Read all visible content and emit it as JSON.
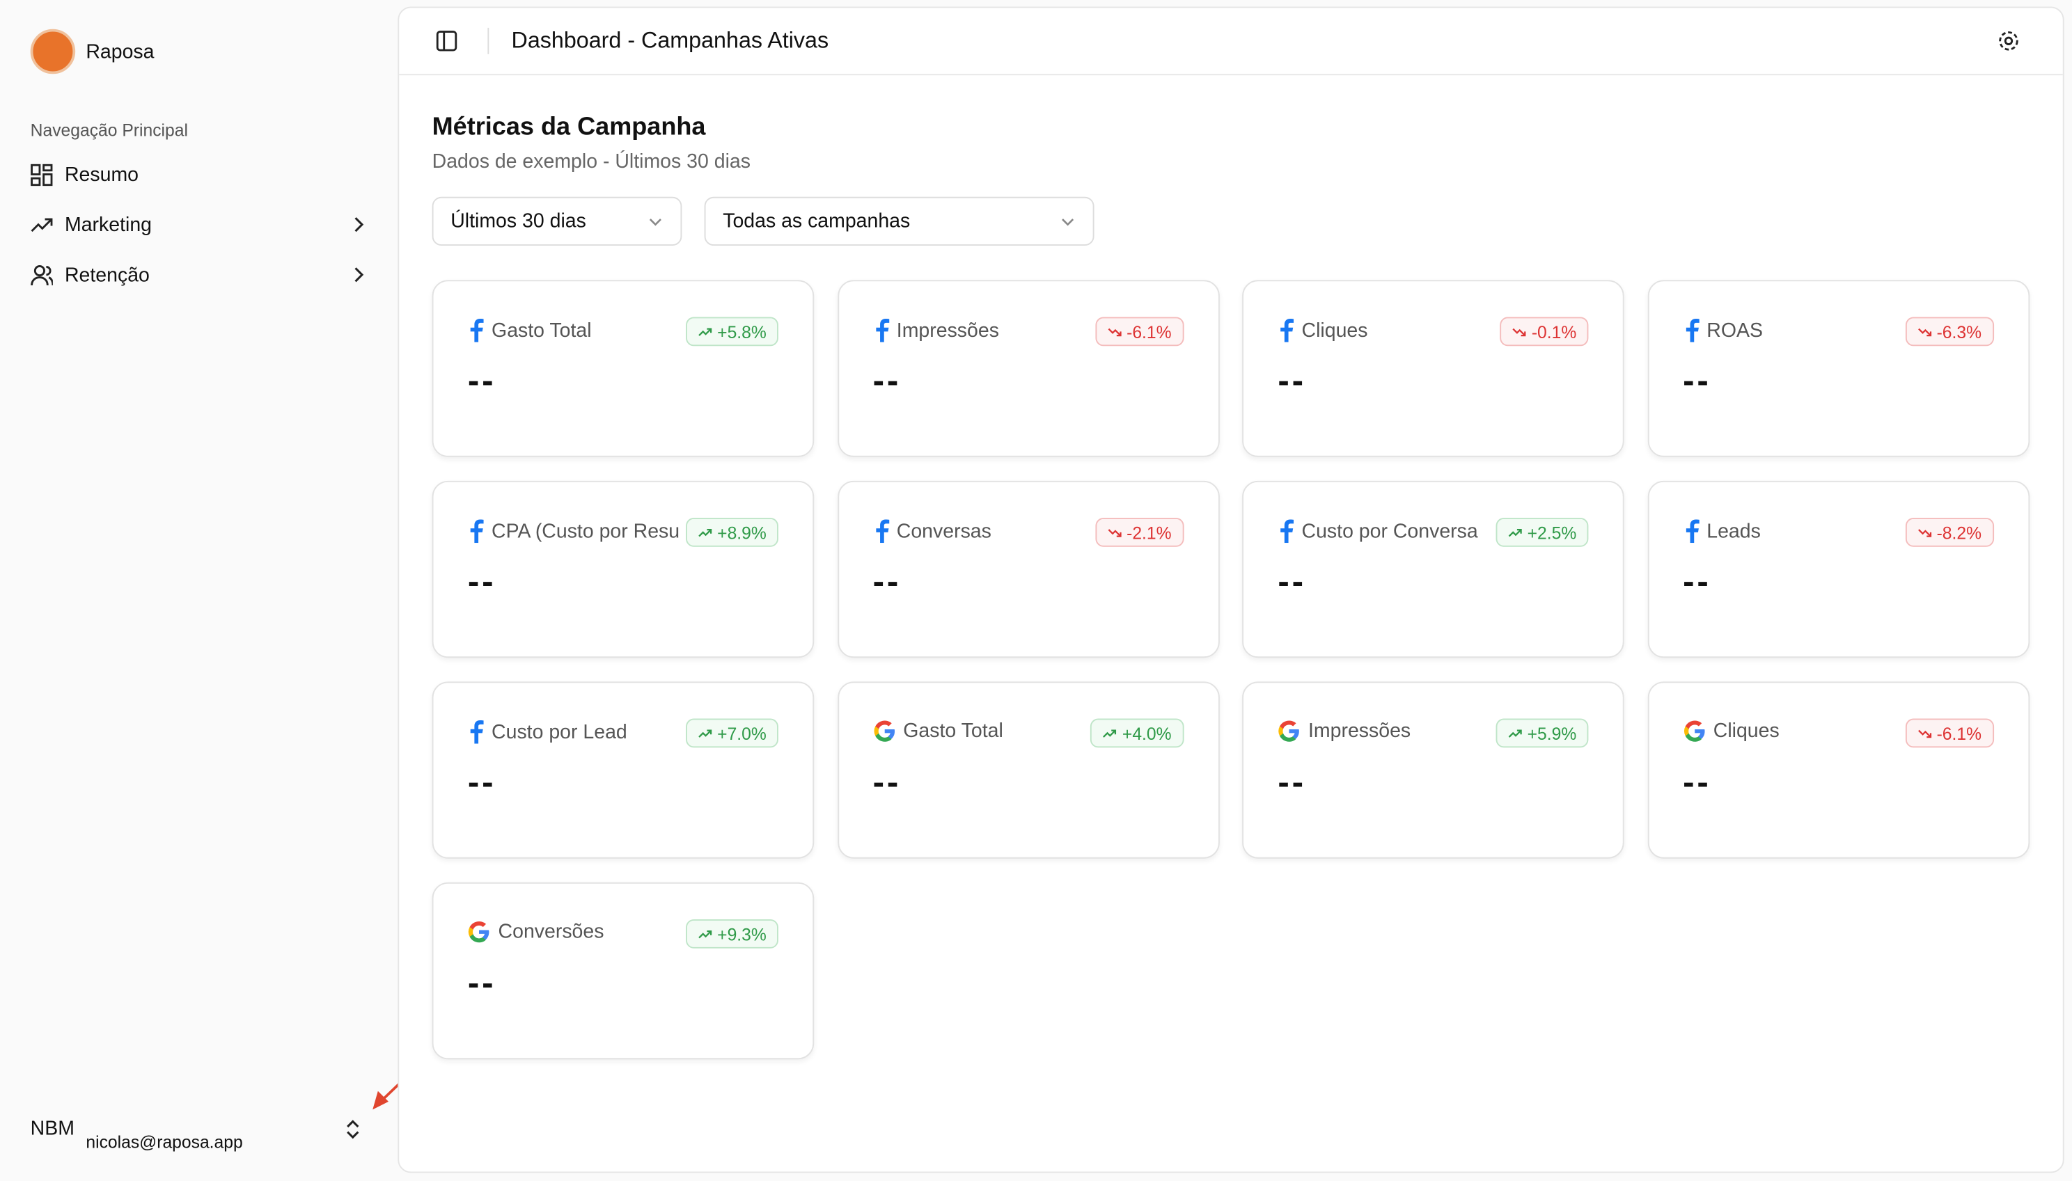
{
  "sidebar": {
    "brand": "Raposa",
    "section": "Navegação Principal",
    "nav": [
      {
        "label": "Resumo",
        "submenu": false
      },
      {
        "label": "Marketing",
        "submenu": true
      },
      {
        "label": "Retenção",
        "submenu": true
      }
    ],
    "user": {
      "initials": "NBM",
      "email": "nicolas@raposa.app"
    }
  },
  "header": {
    "title": "Dashboard - Campanhas Ativas"
  },
  "section": {
    "title": "Métricas da Campanha",
    "subtitle": "Dados de exemplo - Últimos 30 dias"
  },
  "filters": [
    "Últimos 30 dias",
    "Todas as campanhas"
  ],
  "cards": [
    {
      "platform": "facebook",
      "label": "Gasto Total",
      "change": "+5.8%",
      "trend": "up",
      "value": "--"
    },
    {
      "platform": "facebook",
      "label": "Impressões",
      "change": "-6.1%",
      "trend": "down",
      "value": "--"
    },
    {
      "platform": "facebook",
      "label": "Cliques",
      "change": "-0.1%",
      "trend": "down",
      "value": "--"
    },
    {
      "platform": "facebook",
      "label": "ROAS",
      "change": "-6.3%",
      "trend": "down",
      "value": "--"
    },
    {
      "platform": "facebook",
      "label": "CPA (Custo por Resu",
      "change": "+8.9%",
      "trend": "up",
      "value": "--"
    },
    {
      "platform": "facebook",
      "label": "Conversas",
      "change": "-2.1%",
      "trend": "down",
      "value": "--"
    },
    {
      "platform": "facebook",
      "label": "Custo por Conversa",
      "change": "+2.5%",
      "trend": "up",
      "value": "--"
    },
    {
      "platform": "facebook",
      "label": "Leads",
      "change": "-8.2%",
      "trend": "down",
      "value": "--"
    },
    {
      "platform": "facebook",
      "label": "Custo por Lead",
      "change": "+7.0%",
      "trend": "up",
      "value": "--"
    },
    {
      "platform": "google",
      "label": "Gasto Total",
      "change": "+4.0%",
      "trend": "up",
      "value": "--"
    },
    {
      "platform": "google",
      "label": "Impressões",
      "change": "+5.9%",
      "trend": "up",
      "value": "--"
    },
    {
      "platform": "google",
      "label": "Cliques",
      "change": "-6.1%",
      "trend": "down",
      "value": "--"
    },
    {
      "platform": "google",
      "label": "Conversões",
      "change": "+9.3%",
      "trend": "up",
      "value": "--"
    }
  ]
}
